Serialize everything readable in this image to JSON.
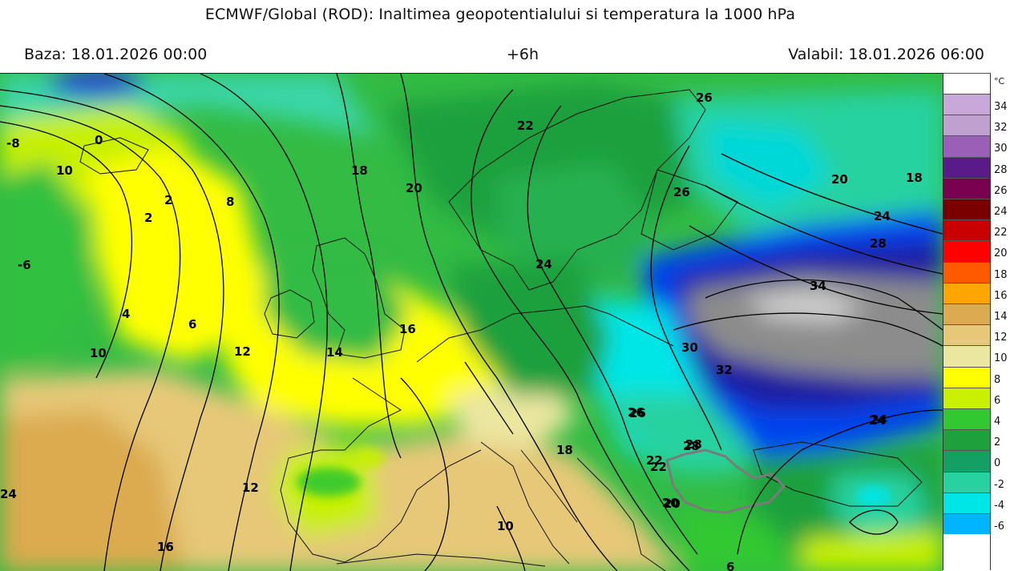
{
  "header": {
    "title": "ECMWF/Global (ROD): Inaltimea geopotentialului si temperatura la 1000 hPa",
    "base": "Baza: 18.01.2026 00:00",
    "lead": "+6h",
    "valid": "Valabil: 18.01.2026 06:00"
  },
  "legend": {
    "unit": "°C",
    "entries": [
      {
        "label": "34",
        "color": "#c8a8d8"
      },
      {
        "label": "32",
        "color": "#bfa0cf"
      },
      {
        "label": "30",
        "color": "#9a60b8"
      },
      {
        "label": "28",
        "color": "#5a1a8a"
      },
      {
        "label": "26",
        "color": "#7a0050"
      },
      {
        "label": "24",
        "color": "#7a0000"
      },
      {
        "label": "22",
        "color": "#c80000"
      },
      {
        "label": "20",
        "color": "#ff0000"
      },
      {
        "label": "18",
        "color": "#ff5a00"
      },
      {
        "label": "16",
        "color": "#ffa500"
      },
      {
        "label": "14",
        "color": "#dcaa50"
      },
      {
        "label": "12",
        "color": "#e6c878"
      },
      {
        "label": "10",
        "color": "#ebe6a0"
      },
      {
        "label": "8",
        "color": "#ffff00"
      },
      {
        "label": "6",
        "color": "#c8f000"
      },
      {
        "label": "4",
        "color": "#32c832"
      },
      {
        "label": "2",
        "color": "#1ea03c"
      },
      {
        "label": "0",
        "color": "#14a064"
      },
      {
        "label": "-2",
        "color": "#28d2a0"
      },
      {
        "label": "-4",
        "color": "#00e6e6"
      },
      {
        "label": "-6",
        "color": "#00b4ff"
      }
    ]
  },
  "map": {
    "contour_labels": [
      "-8",
      "0",
      "10",
      "2",
      "2",
      "8",
      "18",
      "20",
      "22",
      "26",
      "20",
      "18",
      "24",
      "28",
      "34",
      "26",
      "24",
      "16",
      "-6",
      "4",
      "6",
      "10",
      "12",
      "14",
      "12",
      "16",
      "18",
      "20",
      "22",
      "24",
      "26",
      "28",
      "30",
      "32",
      "26",
      "28",
      "24",
      "22",
      "20",
      "10",
      "16",
      "24",
      "6"
    ],
    "region_outline": "Romania"
  }
}
